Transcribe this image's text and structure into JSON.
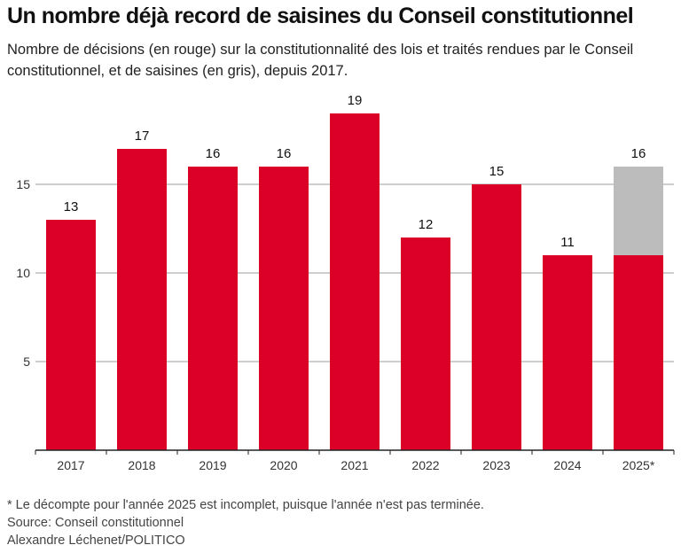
{
  "title": "Un nombre déjà record de saisines du Conseil constitutionnel",
  "subtitle": "Nombre de décisions (en rouge) sur la constitutionnalité des lois et traités rendues par le Conseil constitutionnel, et de saisines (en gris), depuis 2017.",
  "colors": {
    "decisions": "#dc0028",
    "saisines": "#bcbcbc",
    "grid": "#9e9e9e",
    "axis": "#222222"
  },
  "chart_data": {
    "type": "bar",
    "title": "Un nombre déjà record de saisines du Conseil constitutionnel",
    "xlabel": "",
    "ylabel": "",
    "ylim": [
      0,
      20
    ],
    "yticks": [
      5,
      10,
      15
    ],
    "grid": true,
    "categories": [
      "2017",
      "2018",
      "2019",
      "2020",
      "2021",
      "2022",
      "2023",
      "2024",
      "2025*"
    ],
    "series": [
      {
        "name": "Décisions",
        "color": "#dc0028",
        "values": [
          13,
          17,
          16,
          16,
          19,
          12,
          15,
          11,
          11
        ]
      },
      {
        "name": "Saisines",
        "color": "#bcbcbc",
        "values": [
          13,
          17,
          16,
          16,
          19,
          12,
          15,
          11,
          16
        ]
      }
    ],
    "labels": [
      "13",
      "17",
      "16",
      "16",
      "19",
      "12",
      "15",
      "11",
      "16"
    ]
  },
  "footer": {
    "note": "* Le décompte pour l'année 2025 est incomplet, puisque l'année n'est pas terminée.",
    "source": "Source: Conseil constitutionnel",
    "author": "Alexandre Léchenet/POLITICO"
  }
}
